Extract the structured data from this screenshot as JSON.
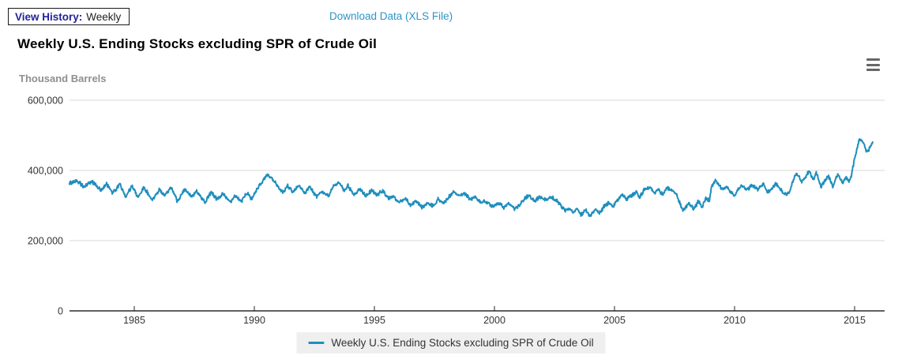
{
  "page": {
    "view_history_label": "View History:",
    "view_history_value": "Weekly",
    "download_link": "Download Data (XLS File)"
  },
  "colors": {
    "line": "#1f8ebd",
    "link": "#2d95c5",
    "view_history_label": "#22229c",
    "grid": "#d8d8d8",
    "axis": "#000000",
    "tick_text": "#333333",
    "legend_bg": "#efefef",
    "y_axis_title_text": "#8f8f8f"
  },
  "chart_data": {
    "type": "line",
    "title": "Weekly U.S. Ending Stocks excluding SPR of Crude Oil",
    "y_axis_title": "Thousand Barrels",
    "unit": "thousand barrels",
    "grid": "horizontal",
    "legend_position": "bottom",
    "x_ticks": [
      1985,
      1990,
      1995,
      2000,
      2005,
      2010,
      2015
    ],
    "y_ticks": [
      0,
      200000,
      400000,
      600000
    ],
    "y_tick_labels": [
      "0",
      "200,000",
      "400,000",
      "600,000"
    ],
    "xlim": [
      1982.3,
      2016.3
    ],
    "ylim": [
      0,
      600000
    ],
    "series": [
      {
        "name": "Weekly U.S. Ending Stocks excluding SPR of Crude Oil",
        "points": [
          [
            1982.3,
            362000
          ],
          [
            1982.6,
            373000
          ],
          [
            1982.9,
            353000
          ],
          [
            1983.25,
            369000
          ],
          [
            1983.6,
            342000
          ],
          [
            1983.85,
            362000
          ],
          [
            1984.1,
            335000
          ],
          [
            1984.4,
            362000
          ],
          [
            1984.65,
            324000
          ],
          [
            1984.9,
            357000
          ],
          [
            1985.15,
            324000
          ],
          [
            1985.4,
            353000
          ],
          [
            1985.75,
            317000
          ],
          [
            1986.05,
            346000
          ],
          [
            1986.25,
            328000
          ],
          [
            1986.55,
            351000
          ],
          [
            1986.8,
            312000
          ],
          [
            1987.1,
            346000
          ],
          [
            1987.4,
            324000
          ],
          [
            1987.6,
            342000
          ],
          [
            1987.95,
            308000
          ],
          [
            1988.2,
            339000
          ],
          [
            1988.45,
            317000
          ],
          [
            1988.7,
            335000
          ],
          [
            1989.0,
            308000
          ],
          [
            1989.2,
            330000
          ],
          [
            1989.45,
            312000
          ],
          [
            1989.7,
            335000
          ],
          [
            1989.9,
            319000
          ],
          [
            1990.1,
            346000
          ],
          [
            1990.35,
            369000
          ],
          [
            1990.55,
            391000
          ],
          [
            1990.8,
            373000
          ],
          [
            1991.05,
            346000
          ],
          [
            1991.2,
            339000
          ],
          [
            1991.4,
            357000
          ],
          [
            1991.6,
            339000
          ],
          [
            1991.85,
            357000
          ],
          [
            1992.1,
            335000
          ],
          [
            1992.3,
            353000
          ],
          [
            1992.6,
            324000
          ],
          [
            1992.8,
            339000
          ],
          [
            1993.1,
            328000
          ],
          [
            1993.3,
            353000
          ],
          [
            1993.55,
            364000
          ],
          [
            1993.75,
            342000
          ],
          [
            1993.9,
            357000
          ],
          [
            1994.15,
            330000
          ],
          [
            1994.4,
            346000
          ],
          [
            1994.65,
            328000
          ],
          [
            1994.9,
            342000
          ],
          [
            1995.1,
            330000
          ],
          [
            1995.35,
            342000
          ],
          [
            1995.6,
            319000
          ],
          [
            1995.8,
            328000
          ],
          [
            1996.0,
            308000
          ],
          [
            1996.3,
            319000
          ],
          [
            1996.5,
            301000
          ],
          [
            1996.75,
            312000
          ],
          [
            1997.0,
            294000
          ],
          [
            1997.25,
            308000
          ],
          [
            1997.45,
            297000
          ],
          [
            1997.65,
            317000
          ],
          [
            1997.9,
            306000
          ],
          [
            1998.1,
            324000
          ],
          [
            1998.3,
            339000
          ],
          [
            1998.55,
            328000
          ],
          [
            1998.75,
            335000
          ],
          [
            1999.0,
            317000
          ],
          [
            1999.2,
            324000
          ],
          [
            1999.45,
            308000
          ],
          [
            1999.65,
            312000
          ],
          [
            1999.9,
            297000
          ],
          [
            2000.2,
            308000
          ],
          [
            2000.4,
            294000
          ],
          [
            2000.6,
            306000
          ],
          [
            2000.85,
            290000
          ],
          [
            2001.05,
            301000
          ],
          [
            2001.25,
            319000
          ],
          [
            2001.45,
            330000
          ],
          [
            2001.65,
            312000
          ],
          [
            2001.9,
            324000
          ],
          [
            2002.1,
            317000
          ],
          [
            2002.4,
            324000
          ],
          [
            2002.6,
            312000
          ],
          [
            2002.8,
            297000
          ],
          [
            2002.95,
            285000
          ],
          [
            2003.1,
            294000
          ],
          [
            2003.3,
            279000
          ],
          [
            2003.45,
            290000
          ],
          [
            2003.6,
            274000
          ],
          [
            2003.8,
            285000
          ],
          [
            2004.0,
            272000
          ],
          [
            2004.2,
            290000
          ],
          [
            2004.4,
            279000
          ],
          [
            2004.6,
            301000
          ],
          [
            2004.8,
            308000
          ],
          [
            2004.95,
            297000
          ],
          [
            2005.2,
            324000
          ],
          [
            2005.35,
            330000
          ],
          [
            2005.5,
            317000
          ],
          [
            2005.7,
            328000
          ],
          [
            2005.9,
            339000
          ],
          [
            2006.05,
            324000
          ],
          [
            2006.25,
            346000
          ],
          [
            2006.5,
            353000
          ],
          [
            2006.65,
            335000
          ],
          [
            2006.85,
            346000
          ],
          [
            2007.0,
            330000
          ],
          [
            2007.2,
            351000
          ],
          [
            2007.4,
            342000
          ],
          [
            2007.6,
            328000
          ],
          [
            2007.85,
            285000
          ],
          [
            2008.1,
            306000
          ],
          [
            2008.3,
            290000
          ],
          [
            2008.5,
            312000
          ],
          [
            2008.65,
            297000
          ],
          [
            2008.8,
            319000
          ],
          [
            2008.95,
            317000
          ],
          [
            2009.05,
            353000
          ],
          [
            2009.2,
            373000
          ],
          [
            2009.35,
            357000
          ],
          [
            2009.5,
            346000
          ],
          [
            2009.65,
            353000
          ],
          [
            2009.85,
            339000
          ],
          [
            2010.0,
            328000
          ],
          [
            2010.2,
            351000
          ],
          [
            2010.35,
            357000
          ],
          [
            2010.5,
            342000
          ],
          [
            2010.7,
            357000
          ],
          [
            2010.85,
            352000
          ],
          [
            2011.0,
            346000
          ],
          [
            2011.2,
            362000
          ],
          [
            2011.35,
            339000
          ],
          [
            2011.5,
            342000
          ],
          [
            2011.7,
            362000
          ],
          [
            2011.85,
            351000
          ],
          [
            2012.0,
            339000
          ],
          [
            2012.15,
            330000
          ],
          [
            2012.3,
            342000
          ],
          [
            2012.5,
            384000
          ],
          [
            2012.6,
            391000
          ],
          [
            2012.8,
            369000
          ],
          [
            2012.95,
            380000
          ],
          [
            2013.1,
            398000
          ],
          [
            2013.3,
            373000
          ],
          [
            2013.4,
            395000
          ],
          [
            2013.6,
            353000
          ],
          [
            2013.9,
            387000
          ],
          [
            2014.1,
            353000
          ],
          [
            2014.3,
            391000
          ],
          [
            2014.5,
            364000
          ],
          [
            2014.65,
            380000
          ],
          [
            2014.75,
            369000
          ],
          [
            2014.85,
            380000
          ],
          [
            2015.0,
            436000
          ],
          [
            2015.2,
            490000
          ],
          [
            2015.35,
            481000
          ],
          [
            2015.5,
            454000
          ],
          [
            2015.6,
            458000
          ],
          [
            2015.75,
            481000
          ]
        ]
      }
    ]
  }
}
